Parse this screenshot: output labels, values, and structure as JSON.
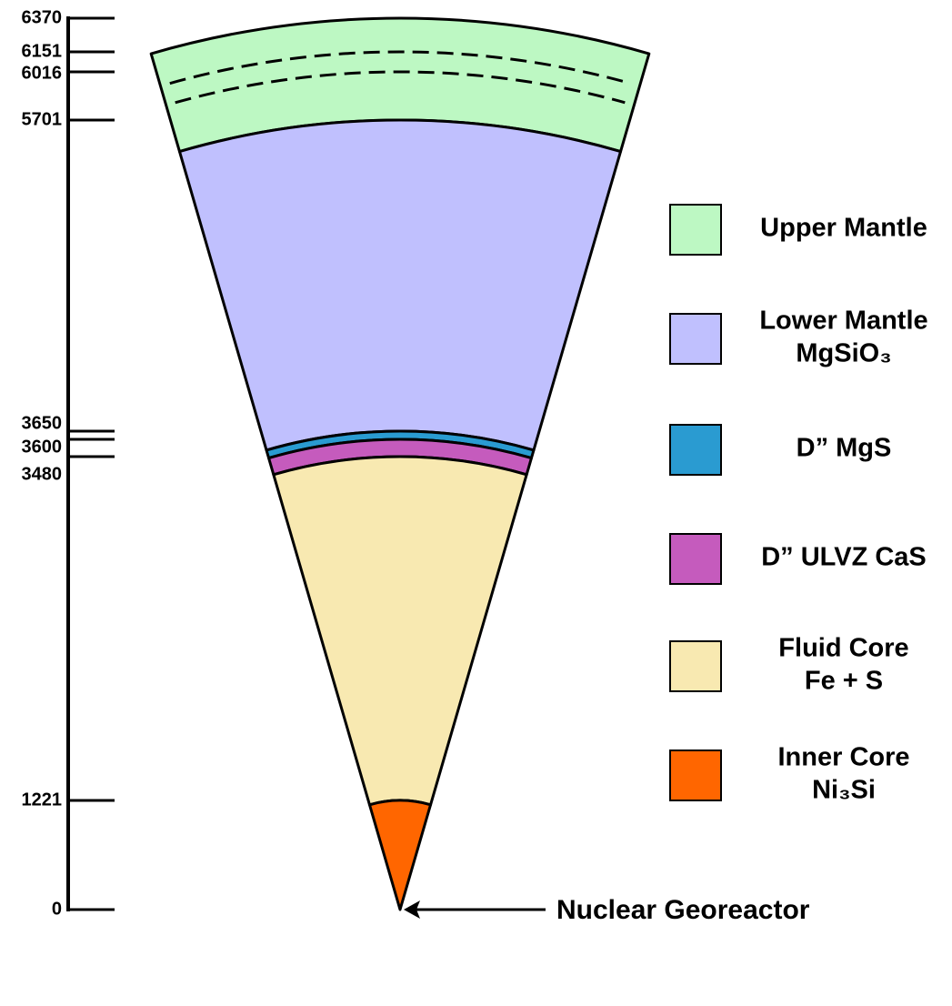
{
  "scale": {
    "ticks": [
      0,
      1221,
      3480,
      3600,
      3650,
      5701,
      6016,
      6151,
      6370
    ]
  },
  "layers": [
    {
      "lines": [
        "Upper Mantle"
      ],
      "color": "#bdf8c3",
      "outer": 6370,
      "inner": 5701
    },
    {
      "lines": [
        "Lower Mantle",
        "MgSiO₃"
      ],
      "color": "#c0c0fe",
      "outer": 5701,
      "inner": 3650
    },
    {
      "lines": [
        "D” MgS"
      ],
      "color": "#2a9bd1",
      "outer": 3650,
      "inner": 3600
    },
    {
      "lines": [
        "D” ULVZ CaS"
      ],
      "color": "#c55bbd",
      "outer": 3600,
      "inner": 3480
    },
    {
      "lines": [
        "Fluid Core",
        "Fe + S"
      ],
      "color": "#f8e9b1",
      "outer": 3480,
      "inner": 1221
    },
    {
      "lines": [
        "Inner Core",
        "Ni₃Si"
      ],
      "color": "#ff6600",
      "outer": 1221,
      "inner": 0
    }
  ],
  "dashed_boundaries": [
    6151,
    6016
  ],
  "annotation": "Nuclear Georeactor"
}
